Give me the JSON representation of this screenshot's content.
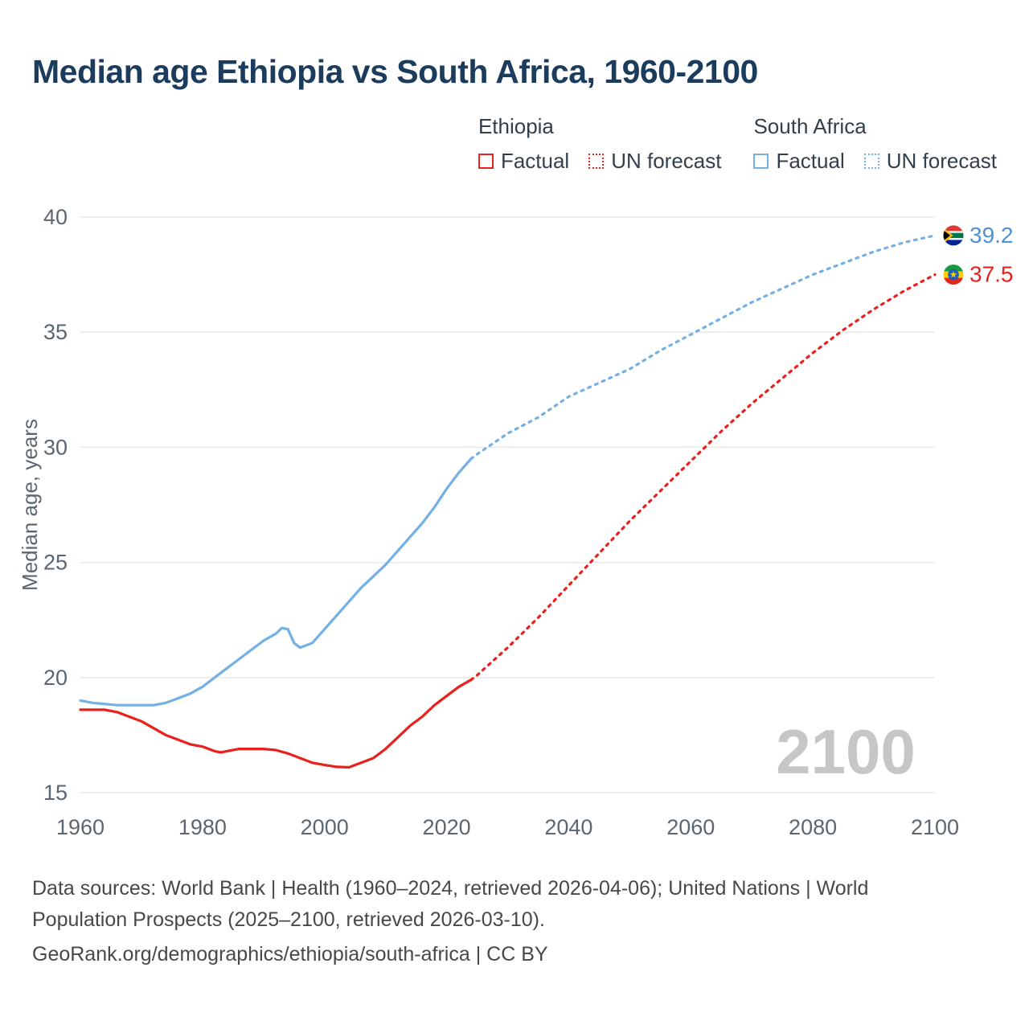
{
  "title": "Median age Ethiopia vs South Africa, 1960-2100",
  "legend": {
    "factual_label": "Factual",
    "forecast_label": "UN forecast",
    "groups": [
      {
        "label": "Ethiopia",
        "color": "#e8211d"
      },
      {
        "label": "South Africa",
        "color": "#74b0e4"
      }
    ]
  },
  "watermark": "2100",
  "footer": {
    "sources": "Data sources: World Bank | Health (1960–2024, retrieved 2026-04-06); United Nations | World Population Prospects (2025–2100, retrieved 2026-03-10).",
    "attribution": "GeoRank.org/demographics/ethiopia/south-africa | CC BY"
  },
  "chart_data": {
    "type": "line",
    "title": "Median age Ethiopia vs South Africa, 1960-2100",
    "xlabel": "",
    "ylabel": "Median age, years",
    "xlim": [
      1960,
      2100
    ],
    "ylim": [
      15,
      40
    ],
    "yticks": [
      15,
      20,
      25,
      30,
      35,
      40
    ],
    "xticks": [
      1960,
      1980,
      2000,
      2020,
      2040,
      2060,
      2080,
      2100
    ],
    "grid": "horizontal",
    "legend_position": "top-right",
    "forecast_split_year": 2024,
    "series": [
      {
        "name": "South Africa",
        "id": "south-africa",
        "color": "#74b0e4",
        "label_color": "#4a93d6",
        "end_label": "39.2",
        "flag_icon": "south-africa-flag-icon",
        "factual": [
          [
            1960,
            19.0
          ],
          [
            1962,
            18.9
          ],
          [
            1964,
            18.85
          ],
          [
            1966,
            18.8
          ],
          [
            1968,
            18.8
          ],
          [
            1970,
            18.8
          ],
          [
            1972,
            18.8
          ],
          [
            1974,
            18.9
          ],
          [
            1976,
            19.1
          ],
          [
            1978,
            19.3
          ],
          [
            1980,
            19.6
          ],
          [
            1982,
            20.0
          ],
          [
            1984,
            20.4
          ],
          [
            1986,
            20.8
          ],
          [
            1988,
            21.2
          ],
          [
            1990,
            21.6
          ],
          [
            1992,
            21.9
          ],
          [
            1993,
            22.15
          ],
          [
            1994,
            22.1
          ],
          [
            1995,
            21.5
          ],
          [
            1996,
            21.3
          ],
          [
            1998,
            21.5
          ],
          [
            2000,
            22.1
          ],
          [
            2002,
            22.7
          ],
          [
            2004,
            23.3
          ],
          [
            2006,
            23.9
          ],
          [
            2008,
            24.4
          ],
          [
            2010,
            24.9
          ],
          [
            2012,
            25.5
          ],
          [
            2014,
            26.1
          ],
          [
            2016,
            26.7
          ],
          [
            2018,
            27.4
          ],
          [
            2020,
            28.2
          ],
          [
            2022,
            28.9
          ],
          [
            2024,
            29.5
          ]
        ],
        "forecast": [
          [
            2025,
            29.7
          ],
          [
            2030,
            30.6
          ],
          [
            2035,
            31.3
          ],
          [
            2040,
            32.2
          ],
          [
            2045,
            32.8
          ],
          [
            2050,
            33.4
          ],
          [
            2055,
            34.2
          ],
          [
            2060,
            34.9
          ],
          [
            2065,
            35.6
          ],
          [
            2070,
            36.3
          ],
          [
            2075,
            36.9
          ],
          [
            2080,
            37.5
          ],
          [
            2085,
            38.0
          ],
          [
            2090,
            38.5
          ],
          [
            2095,
            38.9
          ],
          [
            2100,
            39.2
          ]
        ]
      },
      {
        "name": "Ethiopia",
        "id": "ethiopia",
        "color": "#e8211d",
        "label_color": "#e8211d",
        "end_label": "37.5",
        "flag_icon": "ethiopia-flag-icon",
        "factual": [
          [
            1960,
            18.6
          ],
          [
            1962,
            18.6
          ],
          [
            1964,
            18.6
          ],
          [
            1966,
            18.5
          ],
          [
            1968,
            18.3
          ],
          [
            1970,
            18.1
          ],
          [
            1972,
            17.8
          ],
          [
            1974,
            17.5
          ],
          [
            1976,
            17.3
          ],
          [
            1978,
            17.1
          ],
          [
            1980,
            17.0
          ],
          [
            1982,
            16.8
          ],
          [
            1983,
            16.75
          ],
          [
            1984,
            16.8
          ],
          [
            1986,
            16.9
          ],
          [
            1988,
            16.9
          ],
          [
            1990,
            16.9
          ],
          [
            1992,
            16.85
          ],
          [
            1994,
            16.7
          ],
          [
            1996,
            16.5
          ],
          [
            1998,
            16.3
          ],
          [
            2000,
            16.2
          ],
          [
            2002,
            16.12
          ],
          [
            2004,
            16.1
          ],
          [
            2006,
            16.3
          ],
          [
            2008,
            16.5
          ],
          [
            2010,
            16.9
          ],
          [
            2012,
            17.4
          ],
          [
            2014,
            17.9
          ],
          [
            2016,
            18.3
          ],
          [
            2018,
            18.8
          ],
          [
            2020,
            19.2
          ],
          [
            2022,
            19.6
          ],
          [
            2024,
            19.9
          ]
        ],
        "forecast": [
          [
            2025,
            20.1
          ],
          [
            2030,
            21.3
          ],
          [
            2035,
            22.6
          ],
          [
            2040,
            24.0
          ],
          [
            2045,
            25.4
          ],
          [
            2050,
            26.8
          ],
          [
            2055,
            28.1
          ],
          [
            2060,
            29.4
          ],
          [
            2065,
            30.7
          ],
          [
            2070,
            31.9
          ],
          [
            2075,
            33.0
          ],
          [
            2080,
            34.1
          ],
          [
            2085,
            35.1
          ],
          [
            2090,
            36.0
          ],
          [
            2095,
            36.8
          ],
          [
            2100,
            37.5
          ]
        ]
      }
    ]
  }
}
